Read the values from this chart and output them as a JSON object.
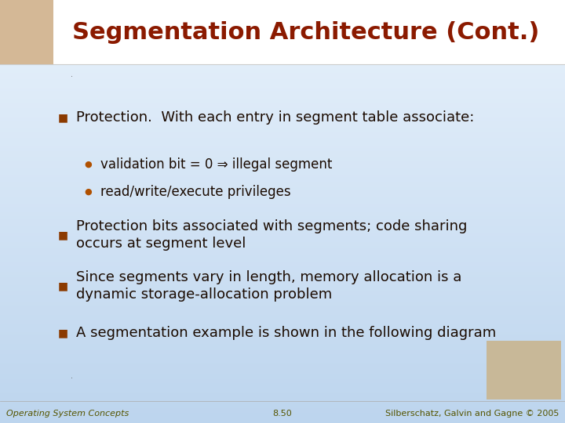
{
  "title": "Segmentation Architecture (Cont.)",
  "title_color": "#8B1A00",
  "title_fontsize": 22,
  "title_fontweight": "bold",
  "bg_color_top": "#e8f2fc",
  "bg_color_bottom": "#bdd5ee",
  "header_bg": "#f0f0f0",
  "bullet_color": "#8B3A00",
  "bullet_color2": "#b05000",
  "text_color": "#1a0a00",
  "text_fontsize": 13,
  "sub_fontsize": 12,
  "footer_text_left": "Operating System Concepts",
  "footer_text_center": "8.50",
  "footer_text_right": "Silberschatz, Galvin and Gagne © 2005",
  "footer_fontsize": 8,
  "bullets": [
    {
      "level": 1,
      "text": "Protection.  With each entry in segment table associate:"
    },
    {
      "level": 2,
      "text": "validation bit = 0 ⇒ illegal segment"
    },
    {
      "level": 2,
      "text": "read/write/execute privileges"
    },
    {
      "level": 1,
      "text": "Protection bits associated with segments; code sharing\noccurs at segment level"
    },
    {
      "level": 1,
      "text": "Since segments vary in length, memory allocation is a\ndynamic storage-allocation problem"
    },
    {
      "level": 1,
      "text": "A segmentation example is shown in the following diagram"
    }
  ]
}
